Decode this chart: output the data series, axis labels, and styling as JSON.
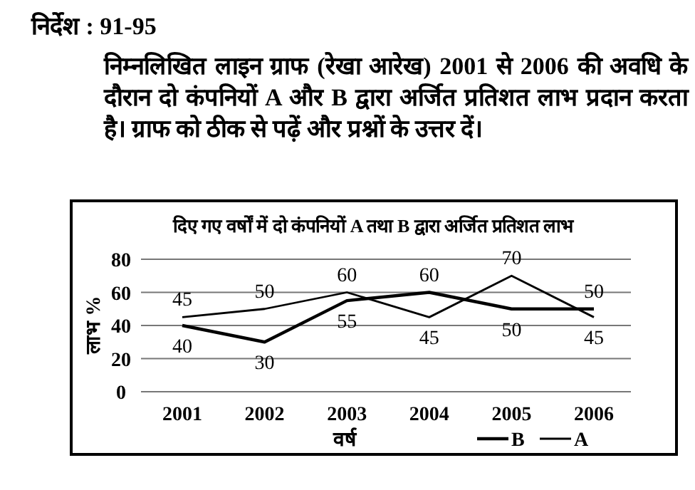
{
  "chart_data": {
    "type": "line",
    "title": "दिए गए वर्षों में दो कंपनियों A तथा B द्वारा अर्जित प्रतिशत लाभ",
    "xlabel": "वर्ष",
    "ylabel": "लाभ %",
    "annotations": [
      "निर्देश : 91-95",
      "निम्नलिखित लाइन ग्राफ (रेखा आरेख) 2001 से 2006 की अवधि के दौरान दो कंपनियों A और B द्वारा अर्जित प्रतिशत लाभ प्रदान करता है। ग्राफ को ठीक से पढ़ें और प्रश्नों के उत्तर दें।"
    ],
    "categories": [
      "2001",
      "2002",
      "2003",
      "2004",
      "2005",
      "2006"
    ],
    "series": [
      {
        "name": "B",
        "color": "#000000",
        "values": [
          40,
          30,
          55,
          60,
          50,
          50
        ]
      },
      {
        "name": "A",
        "color": "#000000",
        "values": [
          45,
          50,
          60,
          45,
          70,
          45
        ]
      }
    ],
    "ylim": [
      0,
      80
    ],
    "yticks": [
      0,
      20,
      40,
      60,
      80
    ],
    "grid": "y",
    "legend": "bottom right",
    "data_labels": true,
    "marker": "none",
    "line_style": "solid"
  }
}
